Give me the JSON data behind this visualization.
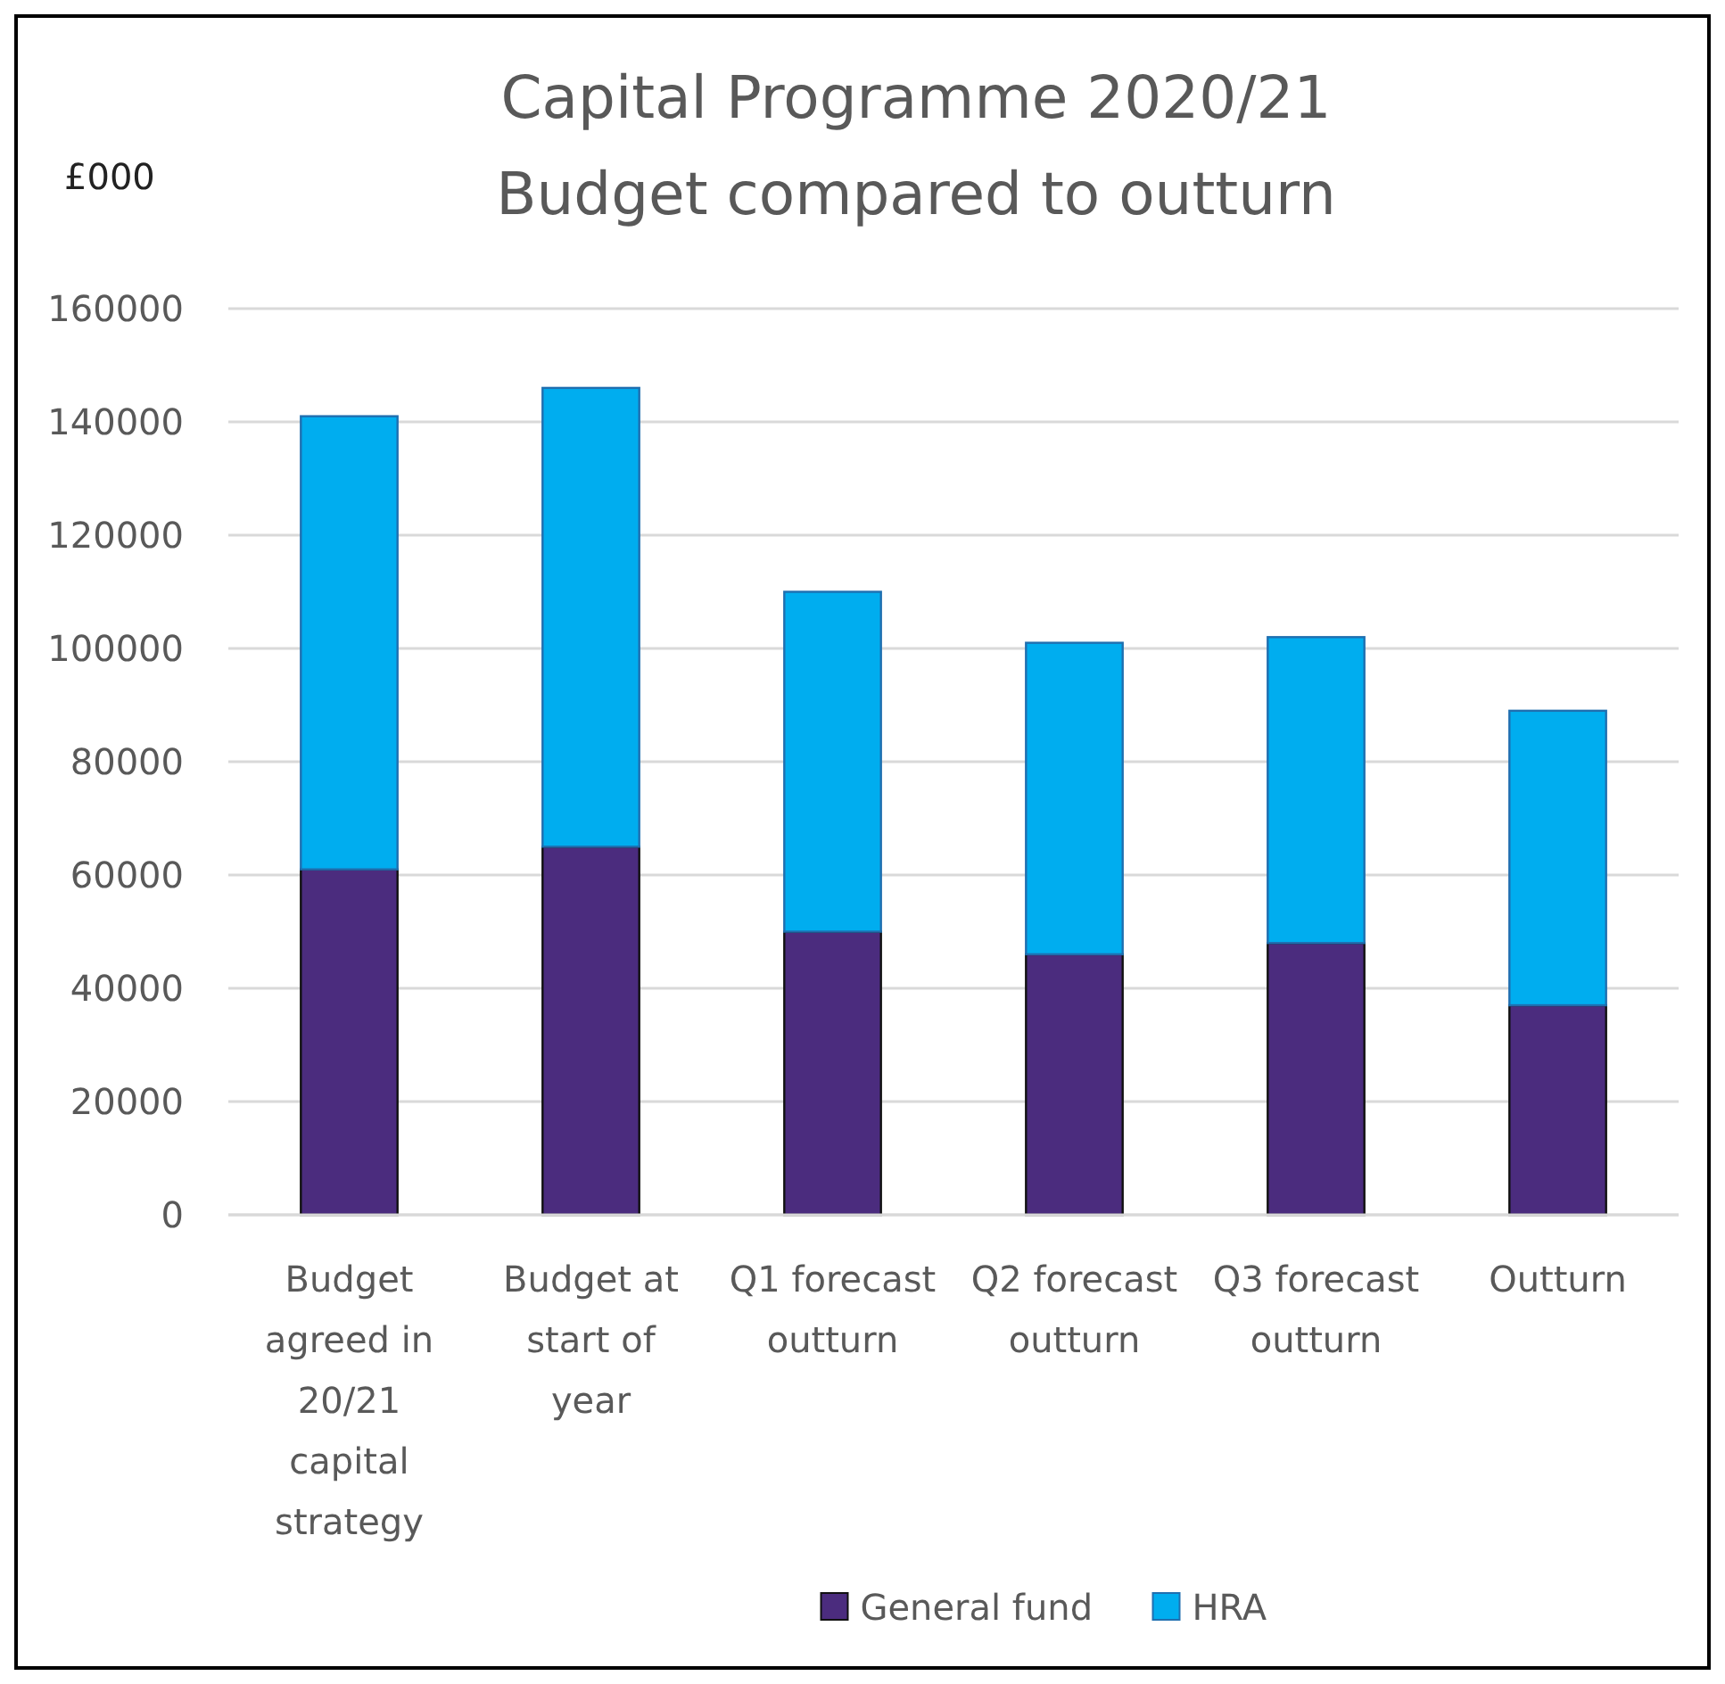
{
  "chart_data": {
    "type": "bar",
    "stacked": true,
    "title": "Capital Programme 2020/21",
    "subtitle": "Budget compared to outturn",
    "ylabel": "£000",
    "categories": [
      "Budget agreed in 20/21 capital strategy",
      "Budget at start of year",
      "Q1 forecast outturn",
      "Q2 forecast outturn",
      "Q3 forecast outturn",
      "Outturn"
    ],
    "series": [
      {
        "name": "General fund",
        "color": "#4b2c7e",
        "values": [
          61000,
          65000,
          50000,
          46000,
          48000,
          37000
        ]
      },
      {
        "name": "HRA",
        "color": "#00adef",
        "values": [
          80000,
          81000,
          60000,
          55000,
          54000,
          52000
        ]
      }
    ],
    "ylim": [
      0,
      160000
    ],
    "yticks": [
      0,
      20000,
      40000,
      60000,
      80000,
      100000,
      120000,
      140000,
      160000
    ],
    "grid": "y",
    "legend": "bottom"
  }
}
